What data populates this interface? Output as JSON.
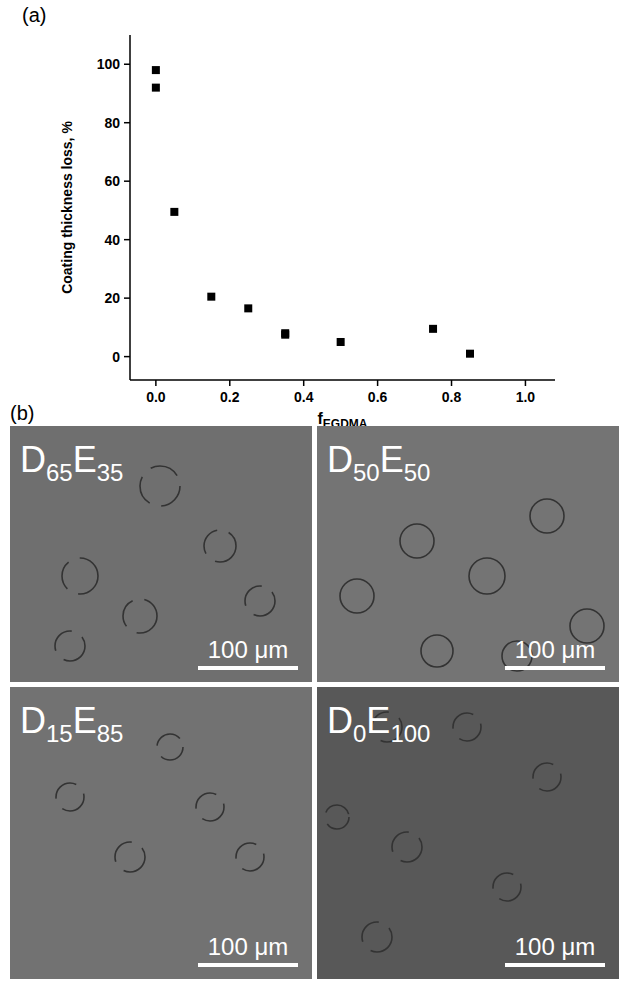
{
  "chart_data": {
    "type": "scatter",
    "xlabel": "fEGDMA",
    "ylabel": "Coating thickness loss, %",
    "x": [
      0,
      0,
      0.05,
      0.15,
      0.25,
      0.35,
      0.35,
      0.5,
      0.75,
      0.85
    ],
    "values": [
      98,
      92,
      49.5,
      20.5,
      16.5,
      7.5,
      8,
      5,
      9.5,
      1
    ],
    "color": "#000000",
    "marker": "square",
    "grid": false,
    "xlim": [
      -0.07,
      1.08
    ],
    "ylim": [
      -8,
      110
    ],
    "xticks": [
      {
        "value": 0,
        "label": "0.0"
      },
      {
        "value": 0.2,
        "label": "0.2"
      },
      {
        "value": 0.4,
        "label": "0.4"
      },
      {
        "value": 0.6,
        "label": "0.6"
      },
      {
        "value": 0.8,
        "label": "0.8"
      },
      {
        "value": 1,
        "label": "1.0"
      }
    ],
    "yticks": [
      0,
      20,
      40,
      60,
      80,
      100
    ]
  },
  "panel_a": {
    "label": "(a)"
  },
  "panel_b": {
    "label": "(b)",
    "images": [
      {
        "label": "D65E35",
        "scale_bar": "100 μm"
      },
      {
        "label": "D50E50",
        "scale_bar": "100 μm"
      },
      {
        "label": "D15E85",
        "scale_bar": "100 μm"
      },
      {
        "label": "D0E100",
        "scale_bar": "100 μm"
      }
    ]
  }
}
